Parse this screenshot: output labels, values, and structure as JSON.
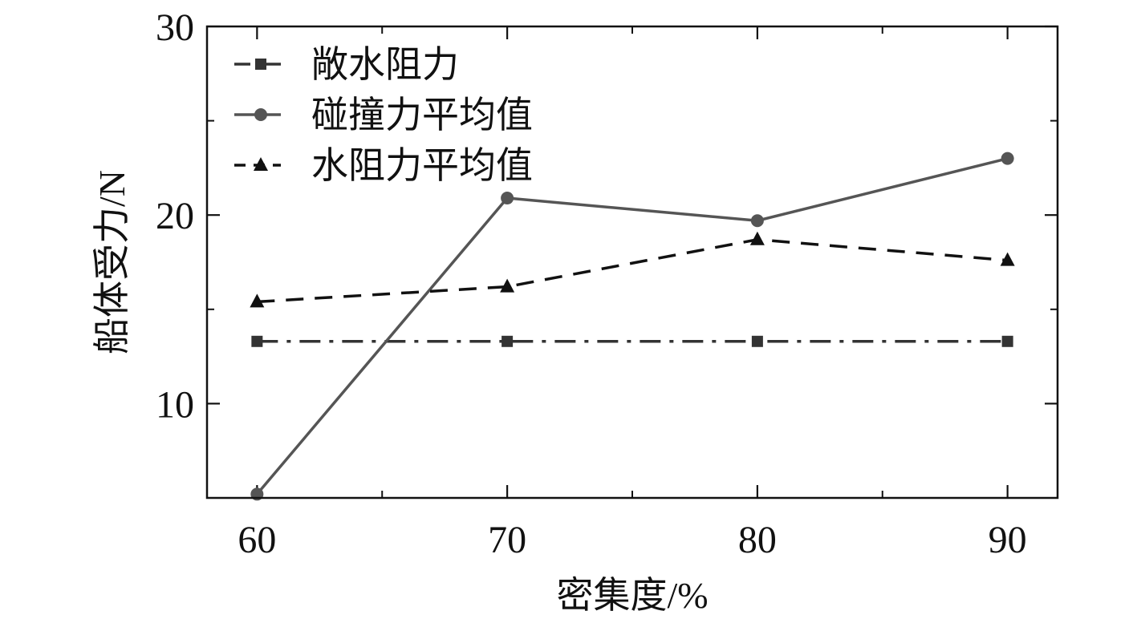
{
  "chart_data": {
    "type": "line",
    "title": "",
    "xlabel": "密集度/%",
    "ylabel": "船体受力/N",
    "x": [
      60,
      70,
      80,
      90
    ],
    "xlim": [
      58,
      92
    ],
    "ylim": [
      5,
      30
    ],
    "xticks": [
      60,
      70,
      80,
      90
    ],
    "yticks": [
      10,
      20,
      30
    ],
    "grid": false,
    "legend_position": "top-left",
    "series": [
      {
        "name": "敞水阻力",
        "values": [
          13.3,
          13.3,
          13.3,
          13.3
        ],
        "marker": "square",
        "line_style": "dash-dot",
        "color": "#333333"
      },
      {
        "name": "碰撞力平均值",
        "values": [
          5.2,
          20.9,
          19.7,
          23.0
        ],
        "marker": "circle",
        "line_style": "solid",
        "color": "#555555"
      },
      {
        "name": "水阻力平均值",
        "values": [
          15.4,
          16.2,
          18.7,
          17.6
        ],
        "marker": "triangle",
        "line_style": "dashed",
        "color": "#111111"
      }
    ]
  }
}
